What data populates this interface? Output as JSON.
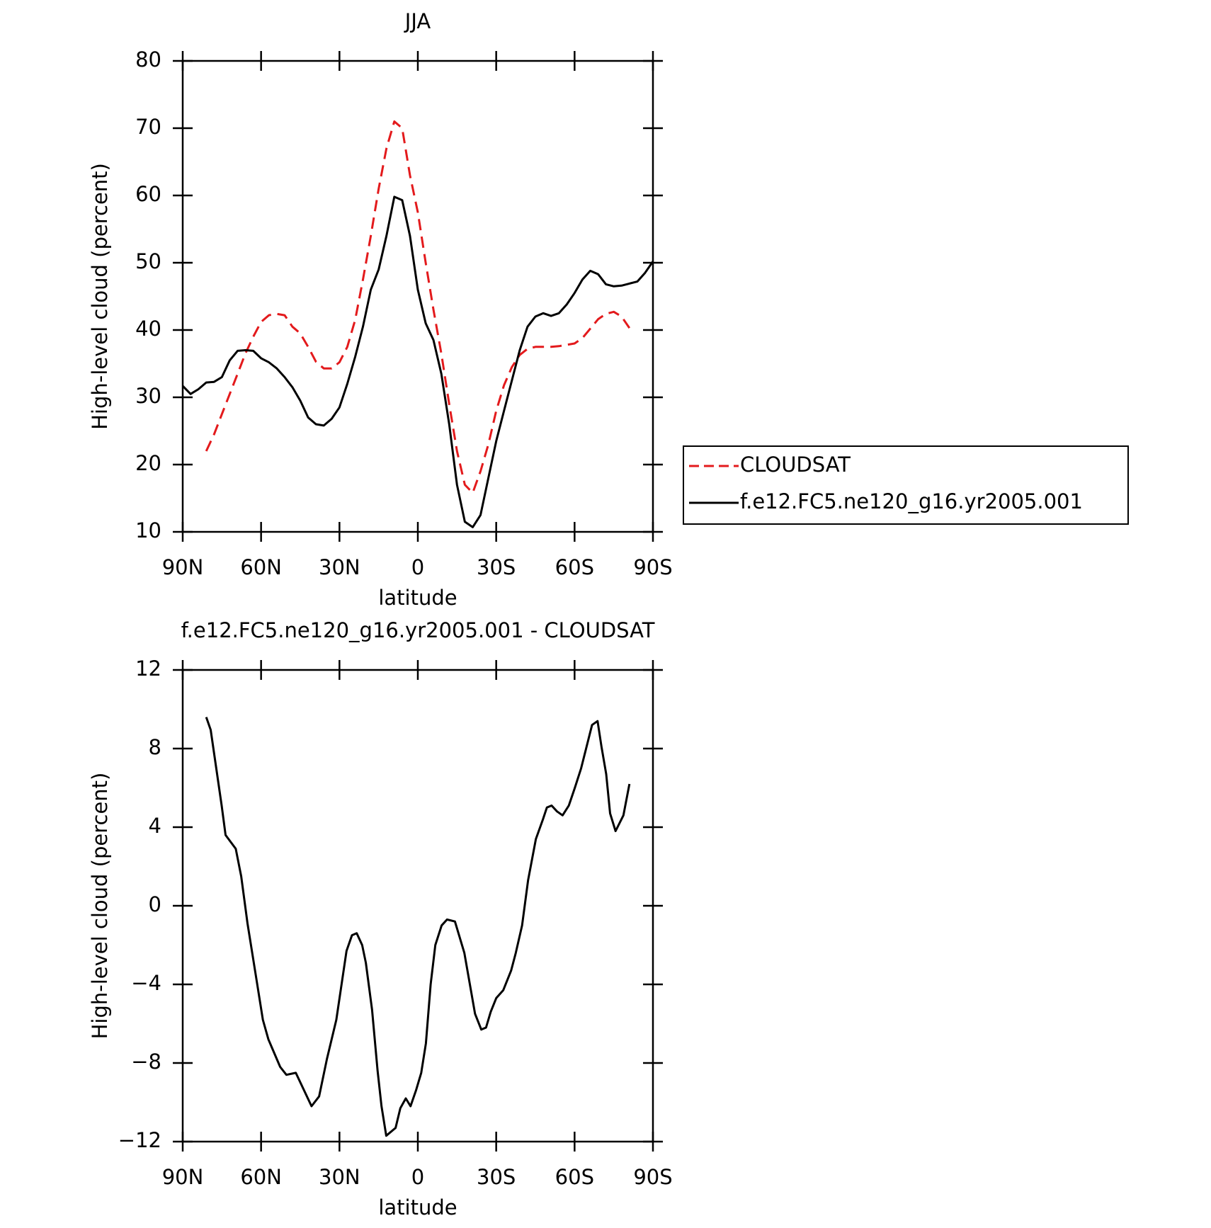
{
  "chart_data": [
    {
      "type": "line",
      "title": "JJA",
      "xlabel": "latitude",
      "ylabel": "High-level cloud (percent)",
      "x": [
        90,
        87,
        84,
        81,
        78,
        75,
        72,
        69,
        66,
        63,
        60,
        57,
        54,
        51,
        48,
        45,
        42,
        39,
        36,
        33,
        30,
        27,
        24,
        21,
        18,
        15,
        12,
        9,
        6,
        3,
        0,
        -3,
        -6,
        -9,
        -12,
        -15,
        -18,
        -21,
        -24,
        -27,
        -30,
        -33,
        -36,
        -39,
        -42,
        -45,
        -48,
        -51,
        -54,
        -57,
        -60,
        -63,
        -66,
        -69,
        -72,
        -75,
        -78,
        -81,
        -84,
        -87,
        -90
      ],
      "series": [
        {
          "name": "CLOUDSAT",
          "color": "#e31a1c",
          "dashed": true,
          "values": [
            null,
            null,
            null,
            22,
            24.5,
            27.5,
            30.5,
            33.5,
            36.5,
            39,
            41.2,
            42.2,
            42.4,
            42.2,
            40.5,
            39.5,
            37.5,
            35.3,
            34.3,
            34.3,
            35.2,
            37.5,
            41.5,
            47.5,
            54,
            61,
            67,
            71,
            70,
            63,
            57.5,
            50,
            43,
            36.5,
            29,
            22,
            17,
            15.8,
            19,
            23,
            28,
            31.8,
            34.5,
            36.3,
            37.2,
            37.5,
            37.5,
            37.5,
            37.6,
            37.8,
            38,
            38.8,
            40.2,
            41.6,
            42.4,
            42.7,
            42,
            40.3,
            null,
            null,
            null
          ]
        },
        {
          "name": "f.e12.FC5.ne120_g16.yr2005.001",
          "color": "#000000",
          "dashed": false,
          "values": [
            31.7,
            30.5,
            31.2,
            32.2,
            32.3,
            33,
            35.5,
            36.9,
            37,
            36.9,
            35.8,
            35.2,
            34.3,
            33,
            31.5,
            29.5,
            27,
            26,
            25.8,
            26.8,
            28.5,
            32,
            36,
            40.5,
            46,
            49,
            54,
            59.8,
            59.3,
            54,
            46,
            41,
            38.5,
            33.5,
            26,
            17,
            11.5,
            10.7,
            12.5,
            18,
            23.5,
            28,
            32.5,
            37,
            40.5,
            42,
            42.5,
            42.1,
            42.5,
            43.8,
            45.5,
            47.5,
            48.8,
            48.3,
            46.8,
            46.5,
            46.6,
            46.9,
            47.2,
            48.5,
            50.2
          ]
        }
      ],
      "xlim": [
        90,
        -90
      ],
      "xticks": [
        {
          "value": 90,
          "label": "90N"
        },
        {
          "value": 60,
          "label": "60N"
        },
        {
          "value": 30,
          "label": "30N"
        },
        0,
        {
          "value": -30,
          "label": "30S"
        },
        {
          "value": -60,
          "label": "60S"
        },
        {
          "value": -90,
          "label": "90S"
        }
      ],
      "ylim": [
        10,
        80
      ],
      "yticks": [
        10,
        20,
        30,
        40,
        50,
        60,
        70,
        80
      ],
      "legend": "right"
    },
    {
      "type": "line",
      "title": "f.e12.FC5.ne120_g16.yr2005.001 - CLOUDSAT",
      "xlabel": "latitude",
      "ylabel": "High-level cloud (percent)",
      "x": [
        81,
        79.3,
        75.1,
        73.6,
        69.7,
        67.6,
        65.2,
        61.6,
        59.3,
        57.2,
        52.7,
        50.3,
        46.7,
        40.7,
        37.8,
        34.8,
        31.2,
        27.3,
        25.2,
        23.4,
        21.3,
        19.9,
        17.5,
        15.4,
        13.9,
        12.1,
        8.5,
        6.7,
        4.6,
        2.8,
        0.7,
        -1.3,
        -3.1,
        -4.9,
        -6.7,
        -9.1,
        -11.2,
        -14.2,
        -17.8,
        -21.9,
        -24.3,
        -26.1,
        -27.9,
        -30,
        -32.7,
        -35.7,
        -37.5,
        -39.9,
        -42.2,
        -45.2,
        -47.9,
        -49.4,
        -51.2,
        -53.3,
        -55.4,
        -57.8,
        -60.1,
        -62.5,
        -64.6,
        -66.7,
        -68.8,
        -70.3,
        -72.1,
        -73.6,
        -75.7,
        -78.7,
        -81
      ],
      "series": [
        {
          "color": "#000000",
          "dashed": false,
          "values": [
            9.6,
            8.95,
            5.1,
            3.6,
            2.9,
            1.5,
            -0.9,
            -3.9,
            -5.8,
            -6.8,
            -8.2,
            -8.6,
            -8.5,
            -10.2,
            -9.7,
            -7.8,
            -5.8,
            -2.3,
            -1.5,
            -1.4,
            -2,
            -2.9,
            -5.3,
            -8.4,
            -10.2,
            -11.7,
            -11.3,
            -10.3,
            -9.8,
            -10.2,
            -9.4,
            -8.5,
            -7,
            -4,
            -2,
            -1,
            -0.7,
            -0.8,
            -2.4,
            -5.5,
            -6.3,
            -6.2,
            -5.4,
            -4.7,
            -4.3,
            -3.3,
            -2.4,
            -1,
            1.3,
            3.4,
            4.4,
            5,
            5.1,
            4.8,
            4.6,
            5.1,
            6,
            7,
            8.1,
            9.2,
            9.4,
            8.1,
            6.7,
            4.7,
            3.8,
            4.6,
            6.2
          ]
        }
      ],
      "xlim": [
        90,
        -90
      ],
      "xticks": [
        {
          "value": 90,
          "label": "90N"
        },
        {
          "value": 60,
          "label": "60N"
        },
        {
          "value": 30,
          "label": "30N"
        },
        0,
        {
          "value": -30,
          "label": "30S"
        },
        {
          "value": -60,
          "label": "60S"
        },
        {
          "value": -90,
          "label": "90S"
        }
      ],
      "ylim": [
        -12,
        12
      ],
      "yticks": [
        {
          "value": -12,
          "label": "−12"
        },
        {
          "value": -8,
          "label": "−8"
        },
        {
          "value": -4,
          "label": "−4"
        },
        0,
        4,
        8,
        12
      ]
    }
  ]
}
